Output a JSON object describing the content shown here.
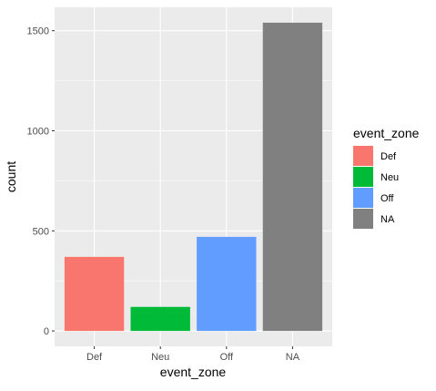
{
  "chart_data": {
    "type": "bar",
    "categories": [
      "Def",
      "Neu",
      "Off",
      "NA"
    ],
    "values": [
      370,
      120,
      470,
      1540
    ],
    "xlabel": "event_zone",
    "ylabel": "count",
    "yticks": [
      0,
      500,
      1000,
      1500
    ],
    "ylim": [
      -77,
      1617
    ],
    "grid": true,
    "legend": {
      "title": "event_zone",
      "placement": "right",
      "entries": [
        "Def",
        "Neu",
        "Off",
        "NA"
      ]
    },
    "colors": [
      "#F8766D",
      "#00BA38",
      "#619CFF",
      "#808080"
    ],
    "panel_background": "#EBEBEB",
    "grid_color": "#FFFFFF"
  }
}
